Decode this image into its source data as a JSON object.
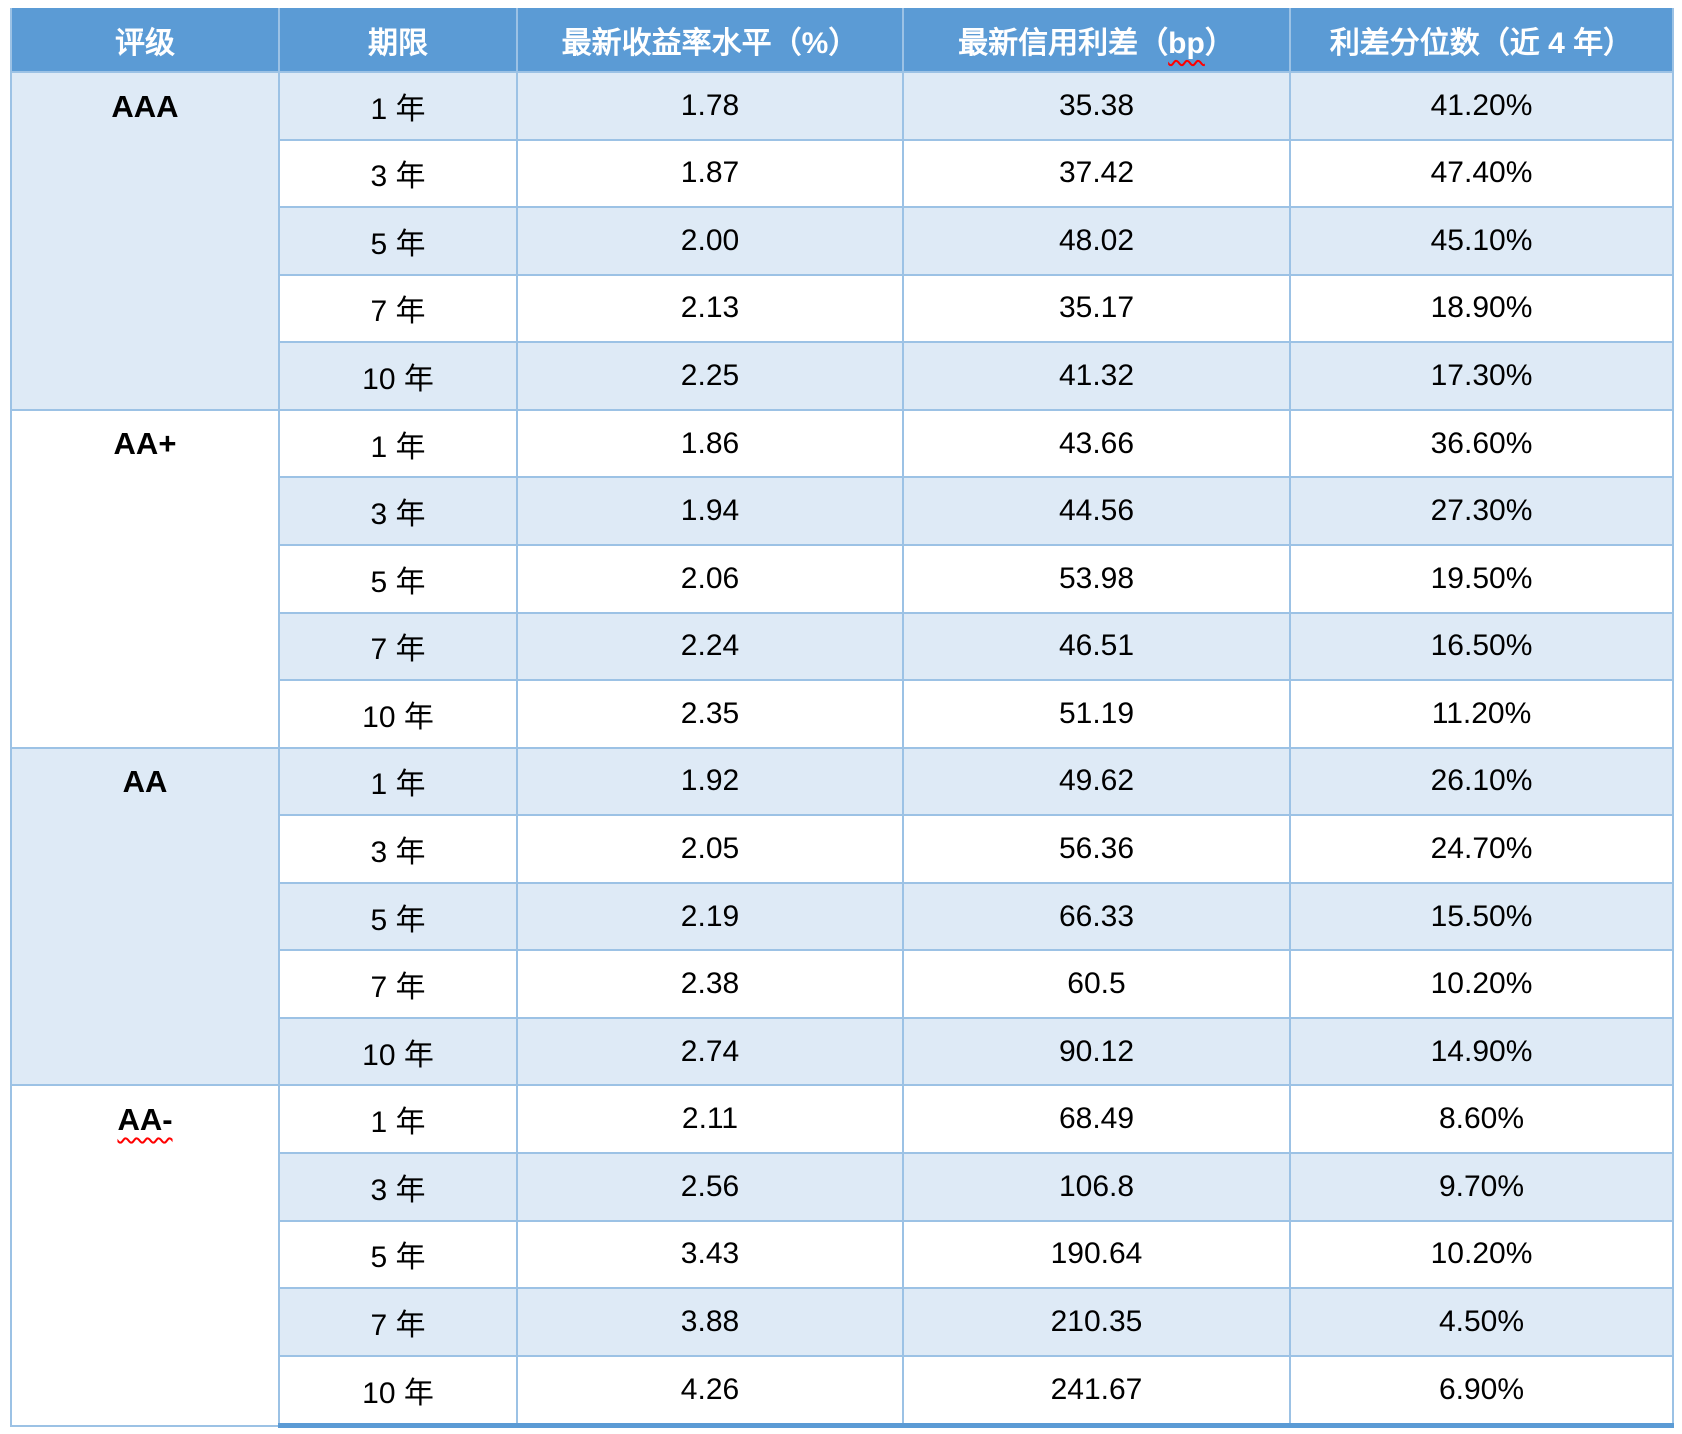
{
  "table": {
    "columns": [
      {
        "label": "评级"
      },
      {
        "label": "期限"
      },
      {
        "label": "最新收益率水平（%）"
      },
      {
        "label_prefix": "最新信用利差（",
        "label_misspelled": "bp",
        "label_suffix": "）"
      },
      {
        "label": "利差分位数（近 4 年）"
      }
    ],
    "groups": [
      {
        "rating": "AAA",
        "spellcheck_underline": false,
        "rows": [
          {
            "term": "1 年",
            "yield": "1.78",
            "spread": "35.38",
            "percentile": "41.20%"
          },
          {
            "term": "3 年",
            "yield": "1.87",
            "spread": "37.42",
            "percentile": "47.40%"
          },
          {
            "term": "5 年",
            "yield": "2.00",
            "spread": "48.02",
            "percentile": "45.10%"
          },
          {
            "term": "7 年",
            "yield": "2.13",
            "spread": "35.17",
            "percentile": "18.90%"
          },
          {
            "term": "10 年",
            "yield": "2.25",
            "spread": "41.32",
            "percentile": "17.30%"
          }
        ]
      },
      {
        "rating": "AA+",
        "spellcheck_underline": false,
        "rows": [
          {
            "term": "1 年",
            "yield": "1.86",
            "spread": "43.66",
            "percentile": "36.60%"
          },
          {
            "term": "3 年",
            "yield": "1.94",
            "spread": "44.56",
            "percentile": "27.30%"
          },
          {
            "term": "5 年",
            "yield": "2.06",
            "spread": "53.98",
            "percentile": "19.50%"
          },
          {
            "term": "7 年",
            "yield": "2.24",
            "spread": "46.51",
            "percentile": "16.50%"
          },
          {
            "term": "10 年",
            "yield": "2.35",
            "spread": "51.19",
            "percentile": "11.20%"
          }
        ]
      },
      {
        "rating": "AA",
        "spellcheck_underline": false,
        "rows": [
          {
            "term": "1 年",
            "yield": "1.92",
            "spread": "49.62",
            "percentile": "26.10%"
          },
          {
            "term": "3 年",
            "yield": "2.05",
            "spread": "56.36",
            "percentile": "24.70%"
          },
          {
            "term": "5 年",
            "yield": "2.19",
            "spread": "66.33",
            "percentile": "15.50%"
          },
          {
            "term": "7 年",
            "yield": "2.38",
            "spread": "60.5",
            "percentile": "10.20%"
          },
          {
            "term": "10 年",
            "yield": "2.74",
            "spread": "90.12",
            "percentile": "14.90%"
          }
        ]
      },
      {
        "rating": "AA-",
        "spellcheck_underline": true,
        "rows": [
          {
            "term": "1 年",
            "yield": "2.11",
            "spread": "68.49",
            "percentile": "8.60%"
          },
          {
            "term": "3 年",
            "yield": "2.56",
            "spread": "106.8",
            "percentile": "9.70%"
          },
          {
            "term": "5 年",
            "yield": "3.43",
            "spread": "190.64",
            "percentile": "10.20%"
          },
          {
            "term": "7 年",
            "yield": "3.88",
            "spread": "210.35",
            "percentile": "4.50%"
          },
          {
            "term": "10 年",
            "yield": "4.26",
            "spread": "241.67",
            "percentile": "6.90%"
          }
        ]
      }
    ],
    "colors": {
      "header_bg": "#5B9BD5",
      "header_text": "#FFFFFF",
      "alt_row_bg": "#DEEAF6",
      "row_bg": "#FFFFFF",
      "border": "#9CC2E5",
      "bottom_border": "#5B9BD5",
      "spellcheck": "#FF0000",
      "body_text": "#000000"
    }
  },
  "chart_data": {
    "type": "table",
    "title": "",
    "columns": [
      "评级",
      "期限",
      "最新收益率水平（%）",
      "最新信用利差（bp）",
      "利差分位数（近 4 年）"
    ],
    "rows": [
      [
        "AAA",
        "1 年",
        1.78,
        35.38,
        "41.20%"
      ],
      [
        "AAA",
        "3 年",
        1.87,
        37.42,
        "47.40%"
      ],
      [
        "AAA",
        "5 年",
        2.0,
        48.02,
        "45.10%"
      ],
      [
        "AAA",
        "7 年",
        2.13,
        35.17,
        "18.90%"
      ],
      [
        "AAA",
        "10 年",
        2.25,
        41.32,
        "17.30%"
      ],
      [
        "AA+",
        "1 年",
        1.86,
        43.66,
        "36.60%"
      ],
      [
        "AA+",
        "3 年",
        1.94,
        44.56,
        "27.30%"
      ],
      [
        "AA+",
        "5 年",
        2.06,
        53.98,
        "19.50%"
      ],
      [
        "AA+",
        "7 年",
        2.24,
        46.51,
        "16.50%"
      ],
      [
        "AA+",
        "10 年",
        2.35,
        51.19,
        "11.20%"
      ],
      [
        "AA",
        "1 年",
        1.92,
        49.62,
        "26.10%"
      ],
      [
        "AA",
        "3 年",
        2.05,
        56.36,
        "24.70%"
      ],
      [
        "AA",
        "5 年",
        2.19,
        66.33,
        "15.50%"
      ],
      [
        "AA",
        "7 年",
        2.38,
        60.5,
        "10.20%"
      ],
      [
        "AA",
        "10 年",
        2.74,
        90.12,
        "14.90%"
      ],
      [
        "AA-",
        "1 年",
        2.11,
        68.49,
        "8.60%"
      ],
      [
        "AA-",
        "3 年",
        2.56,
        106.8,
        "9.70%"
      ],
      [
        "AA-",
        "5 年",
        3.43,
        190.64,
        "10.20%"
      ],
      [
        "AA-",
        "7 年",
        3.88,
        210.35,
        "4.50%"
      ],
      [
        "AA-",
        "10 年",
        4.26,
        241.67,
        "6.90%"
      ]
    ],
    "layout_hints": {
      "merged_first_column_by_rating": true,
      "alternating_row_shading": true,
      "grid": true
    }
  }
}
